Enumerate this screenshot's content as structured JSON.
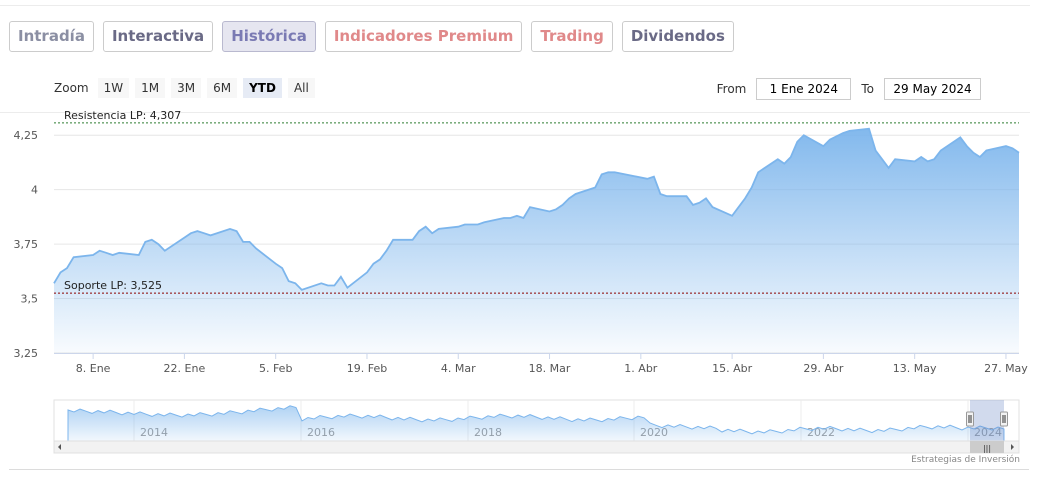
{
  "tabs": [
    {
      "label": "Intradía",
      "color": "#8b8fa3"
    },
    {
      "label": "Interactiva",
      "color": "#6a6a86"
    },
    {
      "label": "Histórica",
      "color": "#7a7ab3",
      "active": true
    },
    {
      "label": "Indicadores Premium",
      "color": "#e0898a"
    },
    {
      "label": "Trading",
      "color": "#e0898a"
    },
    {
      "label": "Dividendos",
      "color": "#6a6a86"
    }
  ],
  "zoom": {
    "label": "Zoom",
    "buttons": [
      "1W",
      "1M",
      "3M",
      "6M",
      "YTD",
      "All"
    ],
    "active": "YTD"
  },
  "range": {
    "from_label": "From",
    "from_value": "1 Ene 2024",
    "to_label": "To",
    "to_value": "29 May 2024"
  },
  "credits": "Estrategias de Inversión",
  "colors": {
    "line": "#7cb5ec",
    "area_top": "#7cb5ec",
    "resistance": "#2e7d32",
    "support": "#8b0000"
  },
  "chart_data": {
    "type": "area",
    "title": "",
    "xlabel": "",
    "ylabel": "",
    "ylim": [
      3.25,
      4.32
    ],
    "yticks": [
      3.25,
      3.5,
      3.75,
      4,
      4.25
    ],
    "ytick_labels": [
      "3,25",
      "3,5",
      "3,75",
      "4",
      "4,25"
    ],
    "xticks": [
      "2024-01-08",
      "2024-01-22",
      "2024-02-05",
      "2024-02-19",
      "2024-03-04",
      "2024-03-18",
      "2024-04-01",
      "2024-04-15",
      "2024-04-29",
      "2024-05-13",
      "2024-05-27"
    ],
    "xtick_labels": [
      "8. Ene",
      "22. Ene",
      "5. Feb",
      "19. Feb",
      "4. Mar",
      "18. Mar",
      "1. Abr",
      "15. Abr",
      "29. Abr",
      "13. May",
      "27. May"
    ],
    "x_range": [
      "2024-01-02",
      "2024-05-29"
    ],
    "grid": "horizontal",
    "series": [
      {
        "x": [
          "2024-01-02",
          "2024-01-03",
          "2024-01-04",
          "2024-01-05",
          "2024-01-08",
          "2024-01-09",
          "2024-01-10",
          "2024-01-11",
          "2024-01-12",
          "2024-01-15",
          "2024-01-16",
          "2024-01-17",
          "2024-01-18",
          "2024-01-19",
          "2024-01-22",
          "2024-01-23",
          "2024-01-24",
          "2024-01-25",
          "2024-01-26",
          "2024-01-29",
          "2024-01-30",
          "2024-01-31",
          "2024-02-01",
          "2024-02-02",
          "2024-02-05",
          "2024-02-06",
          "2024-02-07",
          "2024-02-08",
          "2024-02-09",
          "2024-02-12",
          "2024-02-13",
          "2024-02-14",
          "2024-02-15",
          "2024-02-16",
          "2024-02-19",
          "2024-02-20",
          "2024-02-21",
          "2024-02-22",
          "2024-02-23",
          "2024-02-26",
          "2024-02-27",
          "2024-02-28",
          "2024-02-29",
          "2024-03-01",
          "2024-03-04",
          "2024-03-05",
          "2024-03-06",
          "2024-03-07",
          "2024-03-08",
          "2024-03-11",
          "2024-03-12",
          "2024-03-13",
          "2024-03-14",
          "2024-03-15",
          "2024-03-18",
          "2024-03-19",
          "2024-03-20",
          "2024-03-21",
          "2024-03-22",
          "2024-03-25",
          "2024-03-26",
          "2024-03-27",
          "2024-03-28",
          "2024-04-02",
          "2024-04-03",
          "2024-04-04",
          "2024-04-05",
          "2024-04-08",
          "2024-04-09",
          "2024-04-10",
          "2024-04-11",
          "2024-04-12",
          "2024-04-15",
          "2024-04-16",
          "2024-04-17",
          "2024-04-18",
          "2024-04-19",
          "2024-04-22",
          "2024-04-23",
          "2024-04-24",
          "2024-04-25",
          "2024-04-26",
          "2024-04-29",
          "2024-04-30",
          "2024-05-02",
          "2024-05-03",
          "2024-05-06",
          "2024-05-07",
          "2024-05-08",
          "2024-05-09",
          "2024-05-10",
          "2024-05-13",
          "2024-05-14",
          "2024-05-15",
          "2024-05-16",
          "2024-05-17",
          "2024-05-20",
          "2024-05-21",
          "2024-05-22",
          "2024-05-23",
          "2024-05-24",
          "2024-05-27",
          "2024-05-28",
          "2024-05-29"
        ],
        "y": [
          3.57,
          3.62,
          3.64,
          3.69,
          3.7,
          3.72,
          3.71,
          3.7,
          3.71,
          3.7,
          3.76,
          3.77,
          3.75,
          3.72,
          3.78,
          3.8,
          3.81,
          3.8,
          3.79,
          3.82,
          3.81,
          3.76,
          3.76,
          3.73,
          3.66,
          3.64,
          3.58,
          3.57,
          3.54,
          3.57,
          3.56,
          3.56,
          3.6,
          3.55,
          3.62,
          3.66,
          3.68,
          3.72,
          3.77,
          3.77,
          3.81,
          3.83,
          3.8,
          3.82,
          3.83,
          3.84,
          3.84,
          3.84,
          3.85,
          3.87,
          3.87,
          3.88,
          3.87,
          3.92,
          3.9,
          3.91,
          3.93,
          3.96,
          3.98,
          4.01,
          4.07,
          4.08,
          4.08,
          4.05,
          4.06,
          3.98,
          3.97,
          3.97,
          3.93,
          3.94,
          3.96,
          3.92,
          3.88,
          3.92,
          3.96,
          4.01,
          4.08,
          4.14,
          4.12,
          4.15,
          4.22,
          4.25,
          4.2,
          4.23,
          4.26,
          4.27,
          4.28,
          4.18,
          4.14,
          4.1,
          4.14,
          4.13,
          4.15,
          4.13,
          4.14,
          4.18,
          4.24,
          4.2,
          4.17,
          4.15,
          4.18,
          4.2,
          4.19,
          4.17
        ]
      }
    ],
    "annotations": [
      {
        "label": "Resistencia LP: 4,307",
        "value": 4.307
      },
      {
        "label": "Soporte LP: 3,525",
        "value": 3.525
      }
    ],
    "navigator": {
      "years": [
        "2014",
        "2016",
        "2018",
        "2020",
        "2022",
        "2024"
      ]
    }
  }
}
